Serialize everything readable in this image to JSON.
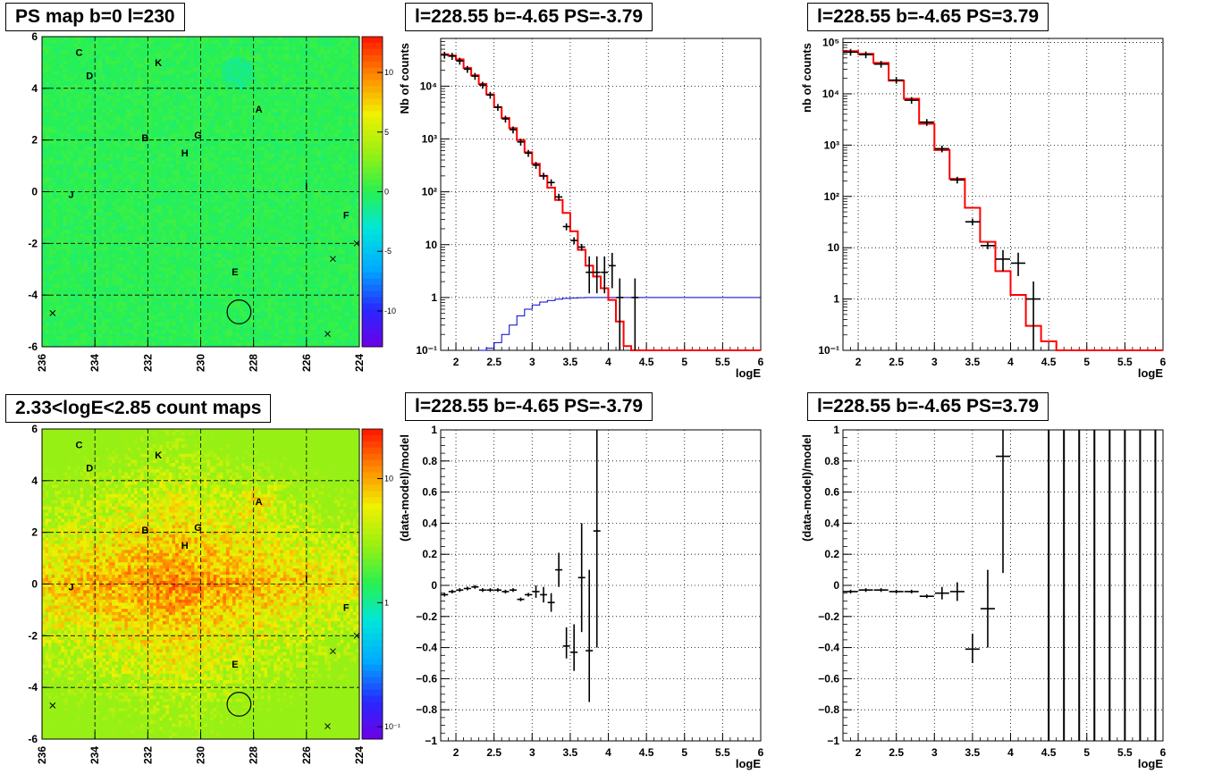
{
  "colors": {
    "data": "#000000",
    "model": "#ff0000",
    "blue": "#0000cc",
    "map_bg": "#22ee55",
    "count_bg": "#ff7722"
  },
  "chart_data": [
    {
      "id": "ps-map",
      "type": "heatmap",
      "title": "PS map b=0 l=230",
      "xlim": [
        236,
        224
      ],
      "ylim": [
        -6,
        6
      ],
      "xticks": [
        "236",
        "234",
        "232",
        "230",
        "228",
        "226",
        "224"
      ],
      "yticks": [
        "-6",
        "-4",
        "-2",
        "0",
        "2",
        "4",
        "6"
      ],
      "colorbar_ticks": [
        "10",
        "5",
        "0",
        "-5",
        "-10"
      ],
      "colorbar_values": [
        10,
        5,
        0,
        -5,
        -10
      ],
      "zlim": [
        -13,
        13
      ],
      "labels": [
        {
          "text": "C",
          "l": 234.6,
          "b": 5.4
        },
        {
          "text": "K",
          "l": 231.6,
          "b": 5.0
        },
        {
          "text": "D",
          "l": 234.2,
          "b": 4.5
        },
        {
          "text": "A",
          "l": 227.8,
          "b": 3.2
        },
        {
          "text": "B",
          "l": 232.1,
          "b": 2.1
        },
        {
          "text": "G",
          "l": 230.1,
          "b": 2.2
        },
        {
          "text": "H",
          "l": 230.6,
          "b": 1.5
        },
        {
          "text": "I",
          "l": 226.0,
          "b": 0.2
        },
        {
          "text": "J",
          "l": 234.9,
          "b": -0.1
        },
        {
          "text": "F",
          "l": 224.5,
          "b": -0.9
        },
        {
          "text": "E",
          "l": 228.7,
          "b": -3.1
        }
      ],
      "circle": {
        "l": 228.55,
        "b": -4.65,
        "r": 0.45
      },
      "crosses": [
        {
          "l": 235.6,
          "b": -4.7
        },
        {
          "l": 225.2,
          "b": -5.5
        },
        {
          "l": 225.0,
          "b": -2.6
        },
        {
          "l": 224.1,
          "b": -2.0
        }
      ]
    },
    {
      "id": "count-map",
      "type": "heatmap",
      "title": "2.33<logE<2.85 count maps",
      "xlim": [
        236,
        224
      ],
      "ylim": [
        -6,
        6
      ],
      "xticks": [
        "236",
        "234",
        "232",
        "230",
        "228",
        "226",
        "224"
      ],
      "yticks": [
        "-6",
        "-4",
        "-2",
        "0",
        "2",
        "4",
        "6"
      ],
      "colorbar_ticks": [
        "10",
        "1",
        "10⁻¹"
      ],
      "colorbar_values": [
        10,
        1,
        0.1
      ],
      "zlim_log": [
        -1.1,
        1.4
      ],
      "labels": [
        {
          "text": "C",
          "l": 234.6,
          "b": 5.4
        },
        {
          "text": "K",
          "l": 231.6,
          "b": 5.0
        },
        {
          "text": "D",
          "l": 234.2,
          "b": 4.5
        },
        {
          "text": "A",
          "l": 227.8,
          "b": 3.2
        },
        {
          "text": "B",
          "l": 232.1,
          "b": 2.1
        },
        {
          "text": "G",
          "l": 230.1,
          "b": 2.2
        },
        {
          "text": "H",
          "l": 230.6,
          "b": 1.5
        },
        {
          "text": "I",
          "l": 226.0,
          "b": 0.2
        },
        {
          "text": "J",
          "l": 234.9,
          "b": -0.1
        },
        {
          "text": "F",
          "l": 224.5,
          "b": -0.9
        },
        {
          "text": "E",
          "l": 228.7,
          "b": -3.1
        }
      ],
      "circle": {
        "l": 228.55,
        "b": -4.65,
        "r": 0.45
      },
      "crosses": [
        {
          "l": 235.6,
          "b": -4.7
        },
        {
          "l": 225.2,
          "b": -5.5
        },
        {
          "l": 225.0,
          "b": -2.6
        },
        {
          "l": 224.1,
          "b": -2.0
        }
      ]
    },
    {
      "id": "spectrum-neg",
      "type": "line",
      "title": "l=228.55 b=-4.65 PS=-3.79",
      "xlabel": "logE",
      "ylabel": "Nb of counts",
      "xlim": [
        1.8,
        6
      ],
      "ylim_log": [
        0.1,
        80000
      ],
      "xticks": [
        2,
        2.5,
        3,
        3.5,
        4,
        4.5,
        5,
        5.5,
        6
      ],
      "xticklabels": [
        "2",
        "2.5",
        "3",
        "3.5",
        "4",
        "4.5",
        "5",
        "5.5",
        "6"
      ],
      "yticks": [
        0.1,
        1,
        10,
        100,
        1000,
        10000
      ],
      "yticklabels": [
        "10⁻¹",
        "1",
        "10",
        "10²",
        "10³",
        "10⁴"
      ],
      "model_edges": [
        1.8,
        1.9,
        2.0,
        2.1,
        2.2,
        2.3,
        2.4,
        2.5,
        2.6,
        2.7,
        2.8,
        2.9,
        3.0,
        3.1,
        3.2,
        3.3,
        3.4,
        3.5,
        3.6,
        3.7,
        3.8,
        3.9,
        4.0,
        4.1,
        4.2,
        4.3,
        4.4,
        6.0
      ],
      "model": [
        40000,
        38000,
        32000,
        22000,
        16000,
        11000,
        7000,
        4000,
        2500,
        1600,
        950,
        560,
        340,
        200,
        120,
        70,
        40,
        18,
        8,
        4,
        2.5,
        1.5,
        0.9,
        0.35,
        0.12,
        0.1,
        0.1
      ],
      "blue_edges": [
        2.3,
        2.4,
        2.5,
        2.6,
        2.7,
        2.8,
        2.9,
        3.0,
        3.1,
        3.2,
        3.3,
        3.4,
        3.5,
        3.6,
        3.7,
        3.8,
        3.9,
        6.0
      ],
      "blue": [
        0.1,
        0.11,
        0.14,
        0.2,
        0.3,
        0.45,
        0.6,
        0.72,
        0.82,
        0.88,
        0.93,
        0.96,
        0.98,
        0.99,
        1.0,
        1.0,
        1.0
      ],
      "points": [
        {
          "x": 1.85,
          "y": 39000
        },
        {
          "x": 1.95,
          "y": 37000
        },
        {
          "x": 2.05,
          "y": 30000
        },
        {
          "x": 2.15,
          "y": 21000
        },
        {
          "x": 2.25,
          "y": 15500
        },
        {
          "x": 2.35,
          "y": 10500
        },
        {
          "x": 2.45,
          "y": 6800
        },
        {
          "x": 2.55,
          "y": 4000
        },
        {
          "x": 2.65,
          "y": 2400
        },
        {
          "x": 2.75,
          "y": 1500
        },
        {
          "x": 2.85,
          "y": 880
        },
        {
          "x": 2.95,
          "y": 540
        },
        {
          "x": 3.05,
          "y": 320
        },
        {
          "x": 3.15,
          "y": 200
        },
        {
          "x": 3.25,
          "y": 150
        },
        {
          "x": 3.35,
          "y": 80
        },
        {
          "x": 3.45,
          "y": 22
        },
        {
          "x": 3.55,
          "y": 12
        },
        {
          "x": 3.65,
          "y": 9
        },
        {
          "x": 3.75,
          "y": 3,
          "lo": 1.2,
          "hi": 6
        },
        {
          "x": 3.85,
          "y": 3,
          "lo": 1.2,
          "hi": 6
        },
        {
          "x": 3.95,
          "y": 3,
          "lo": 1.2,
          "hi": 6
        },
        {
          "x": 4.05,
          "y": 4,
          "lo": 1.5,
          "hi": 7
        },
        {
          "x": 4.15,
          "y": 1,
          "lo": 0.1,
          "hi": 2.3
        },
        {
          "x": 4.35,
          "y": 1,
          "lo": 0.1,
          "hi": 2.3
        }
      ]
    },
    {
      "id": "spectrum-pos",
      "type": "line",
      "title": "l=228.55 b=-4.65 PS=3.79",
      "xlabel": "logE",
      "ylabel": "nb of counts",
      "xlim": [
        1.8,
        6
      ],
      "ylim_log": [
        0.1,
        120000
      ],
      "xticks": [
        2,
        2.5,
        3,
        3.5,
        4,
        4.5,
        5,
        5.5,
        6
      ],
      "xticklabels": [
        "2",
        "2.5",
        "3",
        "3.5",
        "4",
        "4.5",
        "5",
        "5.5",
        "6"
      ],
      "yticks": [
        0.1,
        1,
        10,
        100,
        1000,
        10000,
        100000
      ],
      "yticklabels": [
        "10⁻¹",
        "1",
        "10",
        "10²",
        "10³",
        "10⁴",
        "10⁵"
      ],
      "model_edges": [
        1.8,
        2.0,
        2.2,
        2.4,
        2.6,
        2.8,
        3.0,
        3.2,
        3.4,
        3.6,
        3.8,
        4.0,
        4.2,
        4.4,
        4.6,
        6.0
      ],
      "model": [
        68000,
        60000,
        40000,
        18000,
        8000,
        2600,
        800,
        220,
        60,
        13,
        3.5,
        1.2,
        0.3,
        0.15,
        0.1
      ],
      "points": [
        {
          "x": 1.9,
          "y": 65000
        },
        {
          "x": 2.1,
          "y": 58000
        },
        {
          "x": 2.3,
          "y": 38000
        },
        {
          "x": 2.5,
          "y": 18500
        },
        {
          "x": 2.7,
          "y": 7500
        },
        {
          "x": 2.9,
          "y": 2800
        },
        {
          "x": 3.1,
          "y": 850
        },
        {
          "x": 3.3,
          "y": 210
        },
        {
          "x": 3.5,
          "y": 32
        },
        {
          "x": 3.7,
          "y": 11
        },
        {
          "x": 3.9,
          "y": 6,
          "lo": 3.5,
          "hi": 9
        },
        {
          "x": 4.1,
          "y": 5,
          "lo": 2.8,
          "hi": 8
        },
        {
          "x": 4.3,
          "y": 1,
          "lo": 0.1,
          "hi": 2.2
        }
      ]
    },
    {
      "id": "residual-neg",
      "type": "scatter",
      "title": "l=228.55 b=-4.65 PS=-3.79",
      "xlabel": "logE",
      "ylabel": "(data-model)/model",
      "xlim": [
        1.8,
        6
      ],
      "ylim": [
        -1,
        1
      ],
      "xticks": [
        2,
        2.5,
        3,
        3.5,
        4,
        4.5,
        5,
        5.5,
        6
      ],
      "xticklabels": [
        "2",
        "2.5",
        "3",
        "3.5",
        "4",
        "4.5",
        "5",
        "5.5",
        "6"
      ],
      "yticks": [
        -1,
        -0.8,
        -0.6,
        -0.4,
        -0.2,
        0,
        0.2,
        0.4,
        0.6,
        0.8,
        1
      ],
      "yticklabels": [
        "−1",
        "−0.8",
        "−0.6",
        "−0.4",
        "−0.2",
        "0",
        "0.2",
        "0.4",
        "0.6",
        "0.8",
        "1"
      ],
      "points": [
        {
          "x": 1.85,
          "y": -0.06
        },
        {
          "x": 1.95,
          "y": -0.04
        },
        {
          "x": 2.05,
          "y": -0.03
        },
        {
          "x": 2.15,
          "y": -0.02
        },
        {
          "x": 2.25,
          "y": -0.01
        },
        {
          "x": 2.35,
          "y": -0.03
        },
        {
          "x": 2.45,
          "y": -0.03
        },
        {
          "x": 2.55,
          "y": -0.03
        },
        {
          "x": 2.65,
          "y": -0.04
        },
        {
          "x": 2.75,
          "y": -0.03
        },
        {
          "x": 2.85,
          "y": -0.09
        },
        {
          "x": 2.95,
          "y": -0.06
        },
        {
          "x": 3.05,
          "y": -0.04,
          "lo": -0.08,
          "hi": 0.0
        },
        {
          "x": 3.15,
          "y": -0.06,
          "lo": -0.11,
          "hi": -0.01
        },
        {
          "x": 3.25,
          "y": -0.11,
          "lo": -0.17,
          "hi": -0.05
        },
        {
          "x": 3.35,
          "y": 0.1,
          "lo": -0.01,
          "hi": 0.21
        },
        {
          "x": 3.45,
          "y": -0.39,
          "lo": -0.47,
          "hi": -0.27
        },
        {
          "x": 3.55,
          "y": -0.43,
          "lo": -0.55,
          "hi": -0.25
        },
        {
          "x": 3.65,
          "y": 0.05,
          "lo": -0.3,
          "hi": 0.4
        },
        {
          "x": 3.75,
          "y": -0.42,
          "lo": -0.75,
          "hi": 0.1
        },
        {
          "x": 3.85,
          "y": 0.35,
          "lo": -0.4,
          "hi": 1.0
        }
      ]
    },
    {
      "id": "residual-pos",
      "type": "scatter",
      "title": "l=228.55 b=-4.65 PS=3.79",
      "xlabel": "logE",
      "ylabel": "(data-model)/model",
      "xlim": [
        1.8,
        6
      ],
      "ylim": [
        -1,
        1
      ],
      "xticks": [
        2,
        2.5,
        3,
        3.5,
        4,
        4.5,
        5,
        5.5,
        6
      ],
      "xticklabels": [
        "2",
        "2.5",
        "3",
        "3.5",
        "4",
        "4.5",
        "5",
        "5.5",
        "6"
      ],
      "yticks": [
        -1,
        -0.8,
        -0.6,
        -0.4,
        -0.2,
        0,
        0.2,
        0.4,
        0.6,
        0.8,
        1
      ],
      "yticklabels": [
        "−1",
        "−0.8",
        "−0.6",
        "−0.4",
        "−0.2",
        "0",
        "0.2",
        "0.4",
        "0.6",
        "0.8",
        "1"
      ],
      "points": [
        {
          "x": 1.9,
          "y": -0.04
        },
        {
          "x": 2.1,
          "y": -0.03
        },
        {
          "x": 2.3,
          "y": -0.03
        },
        {
          "x": 2.5,
          "y": -0.04
        },
        {
          "x": 2.7,
          "y": -0.04
        },
        {
          "x": 2.9,
          "y": -0.07
        },
        {
          "x": 3.1,
          "y": -0.05,
          "lo": -0.09,
          "hi": -0.01
        },
        {
          "x": 3.3,
          "y": -0.04,
          "lo": -0.1,
          "hi": 0.02
        },
        {
          "x": 3.5,
          "y": -0.41,
          "lo": -0.5,
          "hi": -0.31
        },
        {
          "x": 3.7,
          "y": -0.15,
          "lo": -0.4,
          "hi": 0.1
        },
        {
          "x": 3.9,
          "y": 0.83,
          "lo": 0.08,
          "hi": 1.0
        }
      ],
      "full_bars": [
        4.5,
        4.7,
        4.9,
        5.1,
        5.3,
        5.5,
        5.7,
        5.9
      ]
    }
  ]
}
